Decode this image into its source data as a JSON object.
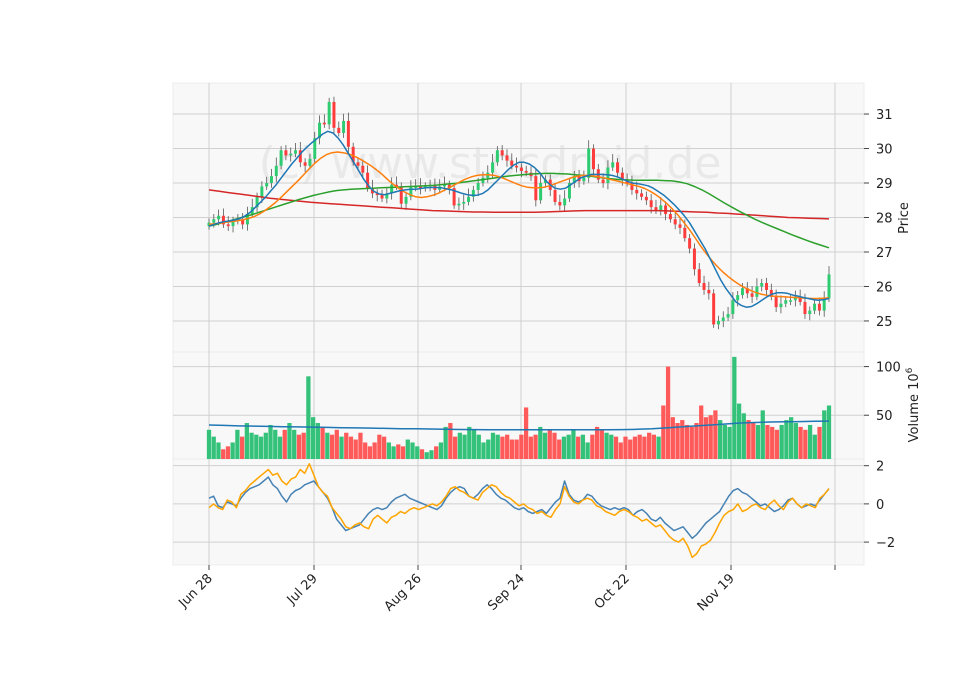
{
  "watermark": "(c) www.stocdroid.de",
  "chart_data": {
    "type": "candlestick",
    "x_ticks": [
      "Jun 28",
      "Jul 29",
      "Aug 26",
      "Sep 24",
      "Oct 22",
      "Nov 19"
    ],
    "price_panel": {
      "ylabel": "Price",
      "yticks": [
        25,
        26,
        27,
        28,
        29,
        30,
        31
      ],
      "ylim": [
        24.1,
        31.9
      ],
      "up_color": "#2ecc71",
      "down_color": "#ff3b3b",
      "closes": [
        27.85,
        27.95,
        28.05,
        27.8,
        27.75,
        27.9,
        27.95,
        27.8,
        28.1,
        28.3,
        28.6,
        28.9,
        29.0,
        29.2,
        29.5,
        29.95,
        29.8,
        29.85,
        29.95,
        29.6,
        29.5,
        29.7,
        30.3,
        30.75,
        30.7,
        31.35,
        30.6,
        30.45,
        30.8,
        30.05,
        29.6,
        29.5,
        29.3,
        28.85,
        28.7,
        28.65,
        28.55,
        28.7,
        28.95,
        28.9,
        28.4,
        28.6,
        28.9,
        28.9,
        28.85,
        28.9,
        28.95,
        28.8,
        28.9,
        28.95,
        28.85,
        28.35,
        28.4,
        28.45,
        28.6,
        28.8,
        29.0,
        29.15,
        29.3,
        29.6,
        29.95,
        29.8,
        29.65,
        29.5,
        29.45,
        29.35,
        29.3,
        29.2,
        28.5,
        29.0,
        29.1,
        28.8,
        28.45,
        28.35,
        28.55,
        29.0,
        29.2,
        29.05,
        29.15,
        30.0,
        29.4,
        29.1,
        29.0,
        29.45,
        29.6,
        29.3,
        29.1,
        29.0,
        28.8,
        28.7,
        28.6,
        28.5,
        28.3,
        28.2,
        28.35,
        28.1,
        27.95,
        27.8,
        27.7,
        27.4,
        27.1,
        26.5,
        26.1,
        25.9,
        25.8,
        24.9,
        25.0,
        25.1,
        25.2,
        25.6,
        25.75,
        25.95,
        25.8,
        25.7,
        26.0,
        26.1,
        25.9,
        25.7,
        25.4,
        25.5,
        25.6,
        25.6,
        25.7,
        25.55,
        25.2,
        25.3,
        25.5,
        25.3,
        25.65,
        26.35
      ],
      "ma_short": [
        27.75,
        27.8,
        27.85,
        27.88,
        27.9,
        27.93,
        27.97,
        28.05,
        28.15,
        28.3,
        28.45,
        28.6,
        28.78,
        28.95,
        29.15,
        29.35,
        29.55,
        29.72,
        29.9,
        30.05,
        30.18,
        30.3,
        30.42,
        30.5,
        30.45,
        30.3,
        30.1,
        29.85,
        29.6,
        29.35,
        29.1,
        28.9,
        28.75,
        28.68,
        28.66,
        28.7,
        28.74,
        28.78,
        28.8,
        28.82,
        28.82,
        28.84,
        28.86,
        28.87,
        28.87,
        28.86,
        28.83,
        28.8,
        28.75,
        28.7,
        28.66,
        28.64,
        28.65,
        28.7,
        28.8,
        28.95,
        29.1,
        29.25,
        29.4,
        29.52,
        29.6,
        29.6,
        29.55,
        29.45,
        29.3,
        29.1,
        28.95,
        28.85,
        28.82,
        28.85,
        28.95,
        29.05,
        29.15,
        29.2,
        29.25,
        29.25,
        29.25,
        29.24,
        29.22,
        29.18,
        29.12,
        29.05,
        29.0,
        28.98,
        28.95,
        28.92,
        28.85,
        28.75,
        28.65,
        28.52,
        28.38,
        28.22,
        28.05,
        27.85,
        27.6,
        27.35,
        27.1,
        26.8,
        26.5,
        26.2,
        25.95,
        25.75,
        25.55,
        25.45,
        25.4,
        25.42,
        25.5,
        25.6,
        25.7,
        25.78,
        25.82,
        25.82,
        25.8,
        25.75,
        25.72,
        25.68,
        25.65,
        25.62,
        25.6,
        25.62,
        25.65
      ],
      "ma_mid": [
        27.8,
        27.82,
        27.84,
        27.86,
        27.88,
        27.9,
        27.93,
        27.97,
        28.02,
        28.1,
        28.2,
        28.32,
        28.45,
        28.6,
        28.76,
        28.92,
        29.08,
        29.25,
        29.42,
        29.58,
        29.72,
        29.82,
        29.88,
        29.9,
        29.88,
        29.84,
        29.78,
        29.7,
        29.6,
        29.5,
        29.38,
        29.25,
        29.1,
        28.96,
        28.84,
        28.74,
        28.66,
        28.6,
        28.58,
        28.6,
        28.64,
        28.7,
        28.78,
        28.86,
        28.95,
        29.04,
        29.12,
        29.18,
        29.22,
        29.24,
        29.24,
        29.22,
        29.18,
        29.12,
        29.05,
        28.98,
        28.92,
        28.88,
        28.86,
        28.86,
        28.88,
        28.92,
        28.98,
        29.04,
        29.1,
        29.16,
        29.2,
        29.22,
        29.22,
        29.2,
        29.17,
        29.14,
        29.1,
        29.06,
        29.02,
        28.98,
        28.94,
        28.9,
        28.84,
        28.76,
        28.66,
        28.54,
        28.4,
        28.24,
        28.06,
        27.86,
        27.65,
        27.42,
        27.18,
        26.96,
        26.76,
        26.58,
        26.42,
        26.28,
        26.16,
        26.05,
        25.96,
        25.88,
        25.82,
        25.77,
        25.74,
        25.72,
        25.71,
        25.7,
        25.69,
        25.68,
        25.67,
        25.66,
        25.65,
        25.65,
        25.66,
        25.67
      ],
      "ma_long": [
        27.75,
        27.8,
        27.86,
        27.92,
        27.98,
        28.04,
        28.1,
        28.17,
        28.24,
        28.31,
        28.38,
        28.45,
        28.52,
        28.58,
        28.64,
        28.69,
        28.74,
        28.78,
        28.8,
        28.82,
        28.83,
        28.84,
        28.85,
        28.86,
        28.87,
        28.88,
        28.89,
        28.9,
        28.91,
        28.92,
        28.93,
        28.95,
        28.97,
        28.99,
        29.02,
        29.05,
        29.08,
        29.11,
        29.14,
        29.17,
        29.2,
        29.22,
        29.24,
        29.26,
        29.27,
        29.28,
        29.28,
        29.27,
        29.26,
        29.24,
        29.22,
        29.2,
        29.17,
        29.14,
        29.12,
        29.1,
        29.09,
        29.08,
        29.08,
        29.08,
        29.08,
        29.07,
        29.06,
        29.03,
        28.98,
        28.9,
        28.8,
        28.68,
        28.55,
        28.42,
        28.3,
        28.18,
        28.07,
        27.96,
        27.86,
        27.77,
        27.68,
        27.59,
        27.5,
        27.42,
        27.34,
        27.26,
        27.19,
        27.12
      ],
      "ma_trend": [
        28.8,
        28.76,
        28.72,
        28.68,
        28.64,
        28.6,
        28.56,
        28.53,
        28.5,
        28.47,
        28.44,
        28.42,
        28.4,
        28.38,
        28.36,
        28.34,
        28.32,
        28.3,
        28.28,
        28.26,
        28.24,
        28.22,
        28.2,
        28.19,
        28.18,
        28.17,
        28.16,
        28.16,
        28.15,
        28.15,
        28.15,
        28.15,
        28.15,
        28.16,
        28.17,
        28.18,
        28.19,
        28.2,
        28.2,
        28.2,
        28.2,
        28.2,
        28.2,
        28.2,
        28.2,
        28.19,
        28.18,
        28.17,
        28.16,
        28.15,
        28.13,
        28.12,
        28.1,
        28.08,
        28.06,
        28.04,
        28.02,
        28.0,
        27.99,
        27.98,
        27.97,
        27.96
      ]
    },
    "volume_panel": {
      "ylabel": "Volume  10^6",
      "yticks": [
        50,
        100
      ],
      "ylim": [
        5,
        115
      ],
      "values": [
        35,
        28,
        22,
        15,
        18,
        22,
        35,
        28,
        42,
        32,
        30,
        28,
        32,
        40,
        35,
        28,
        35,
        42,
        35,
        30,
        32,
        90,
        48,
        42,
        38,
        32,
        30,
        35,
        28,
        32,
        28,
        25,
        32,
        22,
        18,
        22,
        30,
        28,
        22,
        18,
        20,
        18,
        25,
        22,
        18,
        15,
        12,
        14,
        18,
        22,
        38,
        42,
        28,
        32,
        30,
        38,
        35,
        30,
        22,
        25,
        32,
        30,
        28,
        30,
        25,
        25,
        30,
        58,
        28,
        30,
        38,
        32,
        35,
        32,
        25,
        28,
        30,
        35,
        28,
        30,
        22,
        30,
        38,
        35,
        32,
        30,
        28,
        22,
        28,
        25,
        28,
        30,
        28,
        32,
        30,
        28,
        60,
        100,
        48,
        42,
        45,
        40,
        38,
        42,
        60,
        48,
        50,
        55,
        45,
        40,
        38,
        110,
        62,
        52,
        45,
        42,
        40,
        55,
        40,
        38,
        35,
        40,
        45,
        48,
        42,
        38,
        35,
        40,
        30,
        38,
        55,
        60
      ],
      "ma": [
        40,
        39.5,
        39,
        38.8,
        38.5,
        38.2,
        38,
        37.8,
        37.5,
        37.2,
        37,
        36.8,
        36.5,
        36.2,
        36,
        35.8,
        35.5,
        35.3,
        35.2,
        35.1,
        35,
        35,
        35,
        35,
        35,
        35,
        35,
        35,
        35.2,
        35.5,
        36,
        37,
        38,
        39,
        40,
        41,
        42,
        42.5,
        43,
        43.2,
        43.5,
        43.8,
        44
      ]
    },
    "oscillator_panel": {
      "yticks": [
        -2,
        0,
        2
      ],
      "ylim": [
        -3.2,
        2.35
      ],
      "blue_series": [
        0.3,
        0.4,
        -0.1,
        -0.2,
        0.1,
        0.0,
        -0.1,
        0.3,
        0.6,
        0.8,
        0.9,
        1.0,
        1.2,
        1.4,
        1.0,
        0.8,
        0.4,
        0.1,
        0.5,
        0.7,
        0.8,
        1.0,
        1.1,
        1.2,
        0.9,
        0.6,
        0.3,
        -0.2,
        -0.8,
        -1.1,
        -1.4,
        -1.3,
        -1.2,
        -1.1,
        -0.8,
        -0.5,
        -0.3,
        -0.2,
        -0.3,
        -0.2,
        0.1,
        0.3,
        0.4,
        0.5,
        0.3,
        0.2,
        0.1,
        0.0,
        -0.1,
        -0.2,
        -0.3,
        -0.1,
        0.3,
        0.6,
        0.8,
        0.9,
        0.8,
        0.4,
        0.3,
        0.5,
        0.8,
        1.0,
        0.8,
        0.5,
        0.3,
        0.2,
        0.0,
        -0.2,
        -0.3,
        -0.2,
        -0.4,
        -0.5,
        -0.4,
        -0.3,
        -0.5,
        -0.2,
        0.1,
        0.3,
        1.2,
        0.5,
        0.2,
        0.1,
        0.2,
        0.5,
        0.4,
        0.1,
        -0.1,
        -0.2,
        -0.3,
        -0.2,
        -0.3,
        -0.2,
        -0.3,
        -0.6,
        -0.4,
        -0.3,
        -0.5,
        -0.8,
        -0.9,
        -0.7,
        -1.0,
        -1.2,
        -1.4,
        -1.3,
        -1.2,
        -1.5,
        -1.8,
        -1.6,
        -1.3,
        -1.0,
        -0.8,
        -0.6,
        -0.4,
        0.0,
        0.4,
        0.7,
        0.8,
        0.6,
        0.5,
        0.3,
        0.1,
        -0.1,
        0.0,
        -0.2,
        -0.4,
        -0.3,
        -0.1,
        0.2,
        0.3,
        0.0,
        -0.2,
        -0.1,
        0.0,
        -0.1,
        0.2,
        0.5,
        0.8
      ],
      "orange_series": [
        -0.2,
        0.0,
        -0.2,
        -0.3,
        0.2,
        0.1,
        -0.2,
        0.5,
        0.7,
        1.0,
        1.2,
        1.4,
        1.6,
        1.8,
        1.5,
        1.6,
        1.2,
        1.0,
        1.3,
        1.4,
        1.8,
        1.6,
        2.1,
        1.5,
        0.9,
        0.6,
        0.4,
        -0.2,
        -0.5,
        -0.8,
        -1.2,
        -1.3,
        -1.1,
        -1.0,
        -1.2,
        -1.3,
        -0.8,
        -0.6,
        -0.8,
        -1.0,
        -0.7,
        -0.6,
        -0.4,
        -0.5,
        -0.3,
        -0.2,
        -0.3,
        -0.2,
        -0.1,
        0.0,
        -0.1,
        0.1,
        0.4,
        0.8,
        0.9,
        0.7,
        0.6,
        0.4,
        0.3,
        0.2,
        0.6,
        0.8,
        1.0,
        0.9,
        0.6,
        0.4,
        0.3,
        0.1,
        -0.1,
        0.0,
        -0.2,
        -0.3,
        -0.5,
        -0.4,
        -0.6,
        -0.7,
        -0.3,
        0.0,
        0.9,
        0.4,
        0.1,
        0.0,
        0.2,
        0.3,
        0.2,
        -0.1,
        -0.2,
        -0.4,
        -0.5,
        -0.6,
        -0.4,
        -0.3,
        -0.4,
        -0.6,
        -0.7,
        -0.9,
        -0.8,
        -1.0,
        -1.2,
        -1.1,
        -1.4,
        -1.7,
        -1.9,
        -2.0,
        -1.8,
        -2.2,
        -2.8,
        -2.6,
        -2.2,
        -2.1,
        -1.9,
        -1.5,
        -1.0,
        -0.6,
        -0.4,
        -0.3,
        0.0,
        -0.4,
        -0.3,
        -0.1,
        0.0,
        -0.2,
        -0.3,
        0.0,
        0.2,
        -0.1,
        -0.3,
        0.1,
        0.3,
        0.0,
        -0.2,
        0.0,
        -0.1,
        -0.2,
        0.3,
        0.5,
        0.8
      ]
    }
  }
}
